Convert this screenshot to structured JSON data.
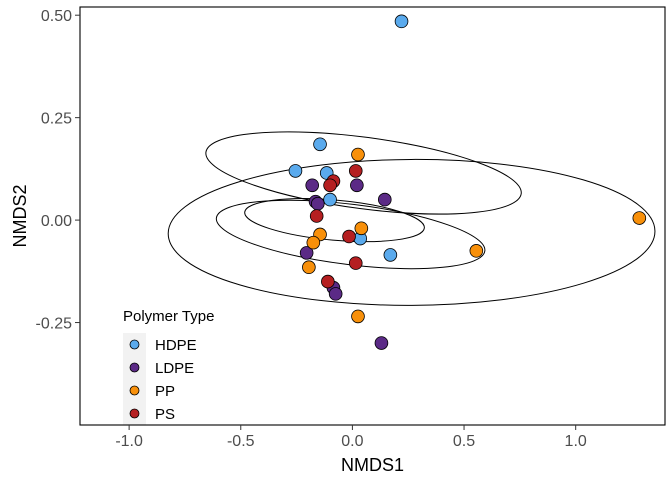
{
  "chart_data": {
    "type": "scatter",
    "title": "",
    "xlabel": "NMDS1",
    "ylabel": "NMDS2",
    "xlim": [
      -1.22,
      1.4
    ],
    "ylim": [
      -0.5,
      0.52
    ],
    "xticks": [
      -1.0,
      -0.5,
      0.0,
      0.5,
      1.0
    ],
    "xtick_labels": [
      "-1.0",
      "-0.5",
      "0.0",
      "0.5",
      "1.0"
    ],
    "yticks": [
      -0.25,
      0.0,
      0.25,
      0.5
    ],
    "ytick_labels": [
      "-0.25",
      "0.00",
      "0.25",
      "0.50"
    ],
    "grid": false,
    "legend": {
      "title": "Polymer Type",
      "placement": "bottom-left"
    },
    "series": [
      {
        "name": "HDPE",
        "color": "#5aaaed",
        "points": [
          {
            "x": 0.22,
            "y": 0.485
          },
          {
            "x": -0.145,
            "y": 0.185
          },
          {
            "x": -0.255,
            "y": 0.12
          },
          {
            "x": -0.115,
            "y": 0.115
          },
          {
            "x": -0.1,
            "y": 0.05
          },
          {
            "x": 0.035,
            "y": -0.045
          },
          {
            "x": 0.17,
            "y": -0.085
          }
        ]
      },
      {
        "name": "LDPE",
        "color": "#5b2a86",
        "points": [
          {
            "x": -0.18,
            "y": 0.085
          },
          {
            "x": -0.165,
            "y": 0.045
          },
          {
            "x": -0.155,
            "y": 0.04
          },
          {
            "x": 0.02,
            "y": 0.085
          },
          {
            "x": 0.145,
            "y": 0.05
          },
          {
            "x": -0.205,
            "y": -0.08
          },
          {
            "x": -0.085,
            "y": -0.165
          },
          {
            "x": -0.075,
            "y": -0.18
          },
          {
            "x": 0.13,
            "y": -0.3
          }
        ]
      },
      {
        "name": "PP",
        "color": "#f8900a",
        "points": [
          {
            "x": 0.025,
            "y": 0.16
          },
          {
            "x": 1.285,
            "y": 0.005
          },
          {
            "x": 0.555,
            "y": -0.075
          },
          {
            "x": -0.145,
            "y": -0.035
          },
          {
            "x": -0.175,
            "y": -0.055
          },
          {
            "x": -0.195,
            "y": -0.115
          },
          {
            "x": 0.04,
            "y": -0.02
          },
          {
            "x": 0.025,
            "y": -0.235
          }
        ]
      },
      {
        "name": "PS",
        "color": "#b51f21",
        "points": [
          {
            "x": 0.015,
            "y": 0.12
          },
          {
            "x": -0.085,
            "y": 0.095
          },
          {
            "x": -0.1,
            "y": 0.085
          },
          {
            "x": -0.16,
            "y": 0.01
          },
          {
            "x": -0.015,
            "y": -0.04
          },
          {
            "x": 0.015,
            "y": -0.105
          },
          {
            "x": -0.11,
            "y": -0.15
          }
        ]
      }
    ],
    "ellipses": [
      {
        "group": "PP",
        "cx": 0.265,
        "cy": -0.03,
        "rx": 1.09,
        "ry": 0.178,
        "angle_deg": -0.3
      },
      {
        "group": "HDPE",
        "cx": 0.05,
        "cy": 0.115,
        "rx": 0.16,
        "ry": 0.388,
        "angle_deg": 97.5
      },
      {
        "group": "LDPE",
        "cx": -0.008,
        "cy": -0.035,
        "rx": 0.135,
        "ry": 0.33,
        "angle_deg": 97
      },
      {
        "group": "PS",
        "cx": -0.08,
        "cy": 0.0,
        "rx": 0.09,
        "ry": 0.22,
        "angle_deg": 95
      }
    ]
  }
}
